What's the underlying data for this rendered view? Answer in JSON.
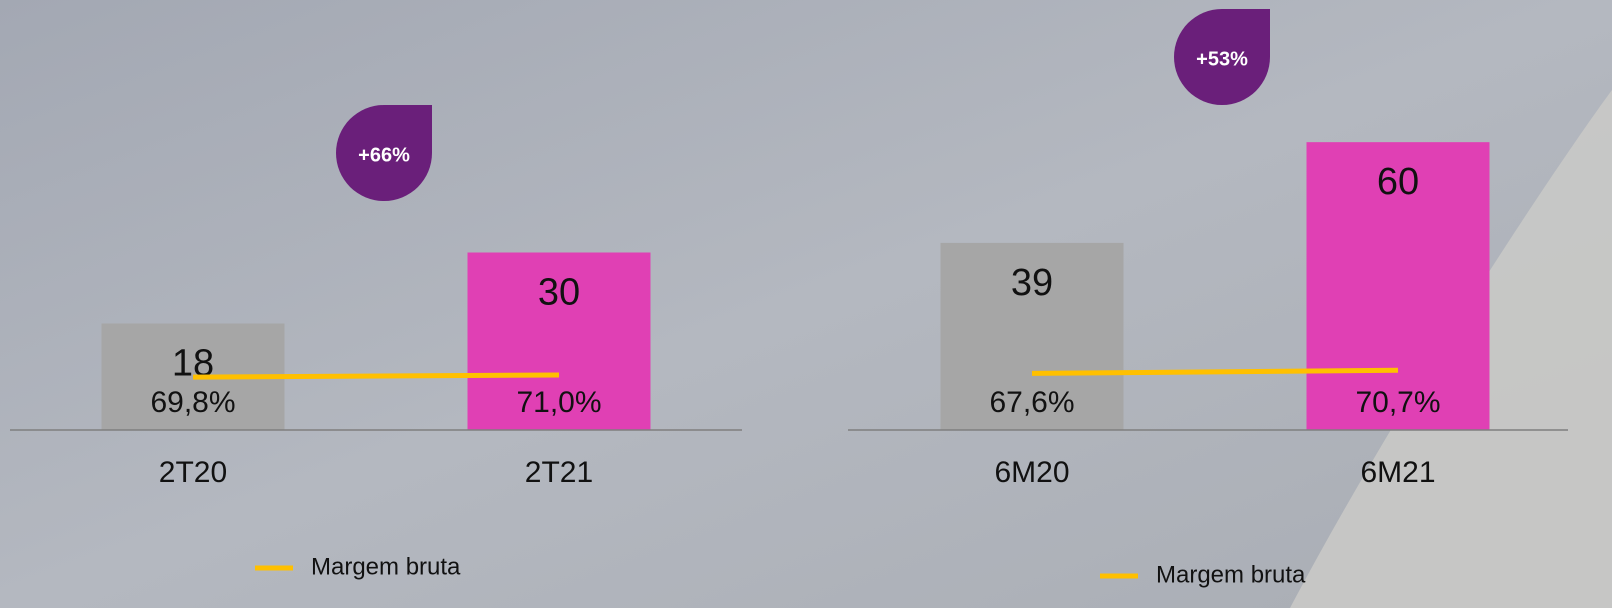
{
  "chart_data": [
    {
      "type": "bar",
      "annotation": "+66%",
      "categories": [
        "2T20",
        "2T21"
      ],
      "series": [
        {
          "colors": [
            "#a6a6a6",
            "#e040b4"
          ],
          "values": [
            18,
            30
          ]
        },
        {
          "name": "Margem bruta",
          "type": "line",
          "color": "#ffc000",
          "axis": "y2",
          "values": [
            69.8,
            71.0
          ],
          "value_labels": [
            "69,8%",
            "71,0%"
          ]
        }
      ],
      "ylim": [
        0,
        60
      ],
      "y2lim": [
        40,
        240
      ]
    },
    {
      "type": "bar",
      "annotation": "+53%",
      "categories": [
        "6M20",
        "6M21"
      ],
      "series": [
        {
          "colors": [
            "#a6a6a6",
            "#e040b4"
          ],
          "values": [
            39,
            60
          ]
        },
        {
          "name": "Margem bruta",
          "type": "line",
          "color": "#ffc000",
          "axis": "y2",
          "values": [
            67.6,
            70.7
          ],
          "value_labels": [
            "67,6%",
            "70,7%"
          ]
        }
      ],
      "ylim": [
        0,
        74
      ],
      "y2lim": [
        11,
        366
      ]
    }
  ]
}
